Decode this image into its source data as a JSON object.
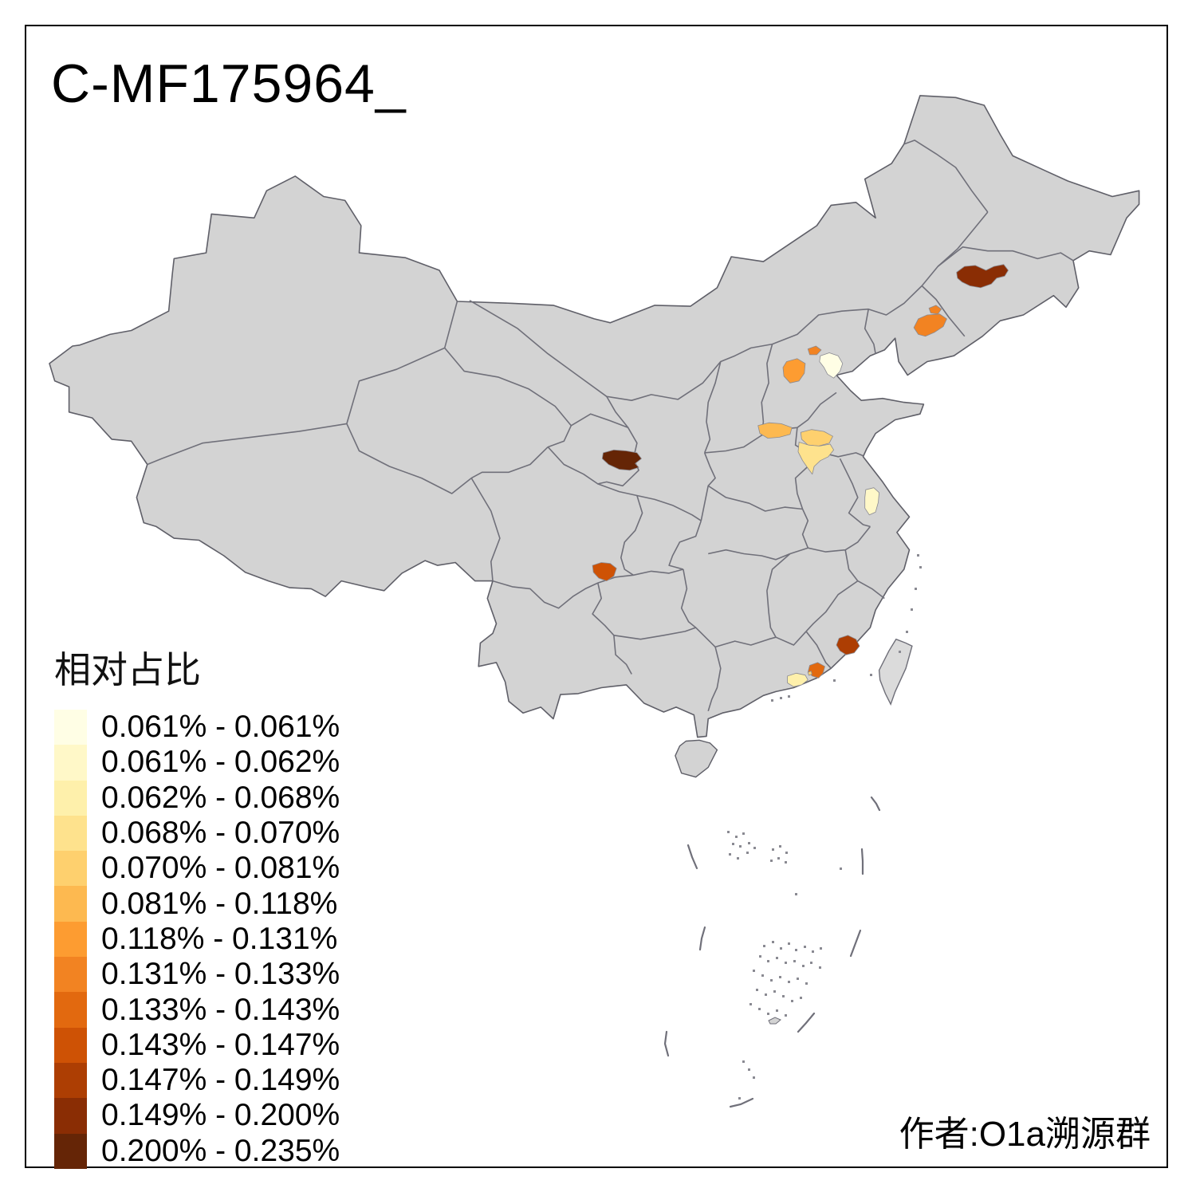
{
  "title": "C-MF175964_",
  "attribution": "作者:O1a溯源群",
  "legend": {
    "title": "相对占比",
    "items": [
      {
        "label": "0.061% - 0.061%",
        "color": "#FFFEE5"
      },
      {
        "label": "0.061% - 0.062%",
        "color": "#FFF8C8"
      },
      {
        "label": "0.062% - 0.068%",
        "color": "#FEF0AB"
      },
      {
        "label": "0.068% - 0.070%",
        "color": "#FEE28D"
      },
      {
        "label": "0.070% - 0.081%",
        "color": "#FED06E"
      },
      {
        "label": "0.081% - 0.118%",
        "color": "#FDB950"
      },
      {
        "label": "0.118% - 0.131%",
        "color": "#FD9C31"
      },
      {
        "label": "0.131% - 0.133%",
        "color": "#F28322"
      },
      {
        "label": "0.133% - 0.143%",
        "color": "#E2690F"
      },
      {
        "label": "0.143% - 0.147%",
        "color": "#CE5205"
      },
      {
        "label": "0.147% - 0.149%",
        "color": "#AD3E03"
      },
      {
        "label": "0.149% - 0.200%",
        "color": "#8A2D04"
      },
      {
        "label": "0.200% - 0.235%",
        "color": "#652506"
      }
    ]
  },
  "map": {
    "background": "#FFFFFF",
    "base_fill": "#D3D3D3",
    "island_fill": "#DBDBDB",
    "border_color": "#70707A",
    "regions": [
      {
        "name": "region-northeast-jilin",
        "class_index": 11
      },
      {
        "name": "region-liaoning-main",
        "class_index": 7
      },
      {
        "name": "region-liaoning-nub",
        "class_index": 7
      },
      {
        "name": "region-beijing",
        "class_index": 7
      },
      {
        "name": "region-hebei-west",
        "class_index": 6
      },
      {
        "name": "region-tianjin-cream",
        "class_index": 0
      },
      {
        "name": "region-shanxi-south",
        "class_index": 5
      },
      {
        "name": "region-shandong-north",
        "class_index": 4
      },
      {
        "name": "region-shandong-south",
        "class_index": 3
      },
      {
        "name": "region-central-gansu",
        "class_index": 12
      },
      {
        "name": "region-sichuan-south",
        "class_index": 9
      },
      {
        "name": "region-jiangsu-mid",
        "class_index": 1
      },
      {
        "name": "region-fujian-coast",
        "class_index": 10
      },
      {
        "name": "region-guangdong-east",
        "class_index": 8
      },
      {
        "name": "region-guangdong-pale",
        "class_index": 2
      },
      {
        "name": "region-guangdong-dot",
        "class_index": 4
      }
    ]
  }
}
